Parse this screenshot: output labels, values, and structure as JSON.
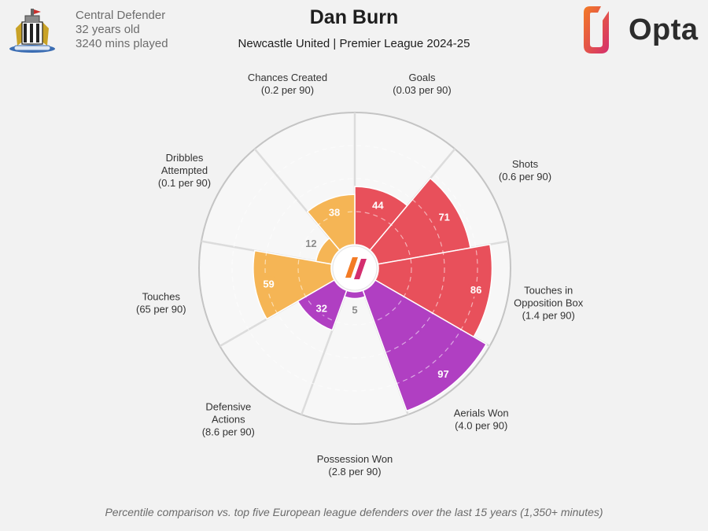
{
  "header": {
    "position": "Central Defender",
    "age": "32 years old",
    "minutes": "3240 mins played",
    "player_name": "Dan Burn",
    "subtitle": "Newcastle United | Premier League 2024-25",
    "brand": "Opta"
  },
  "footer": {
    "note": "Percentile comparison vs. top five European league defenders over the last 15 years (1,350+ minutes)"
  },
  "colors": {
    "attacking": "#e8505b",
    "defending": "#b03fc2",
    "possession": "#f5b555",
    "low_label": "#8c8c8c",
    "grid": "#dcdcdc",
    "background": "#f2f2f2",
    "opta_orange": "#f37b25",
    "opta_magenta": "#d42e6e"
  },
  "chart_data": {
    "type": "polar-bar",
    "scale_max": 100,
    "metrics": [
      {
        "name": "Goals",
        "sub": "(0.03 per 90)",
        "value": 44,
        "group": "attacking"
      },
      {
        "name": "Shots",
        "sub": "(0.6 per 90)",
        "value": 71,
        "group": "attacking"
      },
      {
        "name": "Touches in Opposition Box",
        "sub": "(1.4 per 90)",
        "value": 86,
        "group": "attacking"
      },
      {
        "name": "Aerials Won",
        "sub": "(4.0 per 90)",
        "value": 97,
        "group": "defending"
      },
      {
        "name": "Possession Won",
        "sub": "(2.8 per 90)",
        "value": 5,
        "group": "defending"
      },
      {
        "name": "Defensive Actions",
        "sub": "(8.6 per 90)",
        "value": 32,
        "group": "defending"
      },
      {
        "name": "Touches",
        "sub": "(65 per 90)",
        "value": 59,
        "group": "possession"
      },
      {
        "name": "Dribbles Attempted",
        "sub": "(0.1 per 90)",
        "value": 12,
        "group": "possession"
      },
      {
        "name": "Chances Created",
        "sub": "(0.2 per 90)",
        "value": 38,
        "group": "possession"
      }
    ]
  }
}
